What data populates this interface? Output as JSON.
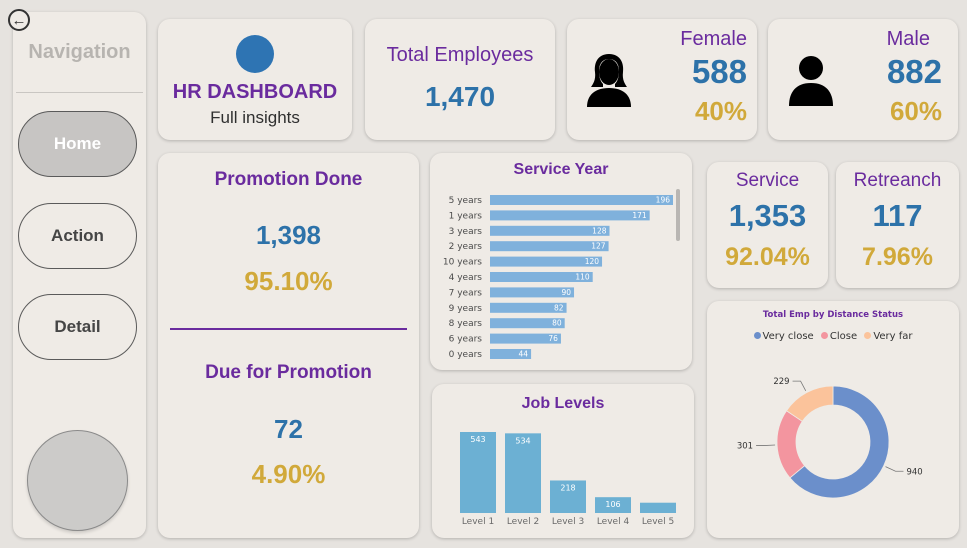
{
  "nav": {
    "title": "Navigation",
    "buttons": [
      {
        "label": "Home",
        "active": true
      },
      {
        "label": "Action",
        "active": false
      },
      {
        "label": "Detail",
        "active": false
      }
    ]
  },
  "header": {
    "title": "HR DASHBOARD",
    "subtitle": "Full insights"
  },
  "total": {
    "label": "Total Employees",
    "value": "1,470"
  },
  "female": {
    "label": "Female",
    "count": "588",
    "pct": "40%"
  },
  "male": {
    "label": "Male",
    "count": "882",
    "pct": "60%"
  },
  "promotion": {
    "done_label": "Promotion Done",
    "done_value": "1,398",
    "done_pct": "95.10%",
    "due_label": "Due for Promotion",
    "due_value": "72",
    "due_pct": "4.90%"
  },
  "service": {
    "label": "Service",
    "value": "1,353",
    "pct": "92.04%"
  },
  "retreanch": {
    "label": "Retreanch",
    "value": "117",
    "pct": "7.96%"
  },
  "colors": {
    "purple": "#6a2b9e",
    "blue": "#2d72a9",
    "gold": "#d1a93a",
    "bar": "#7fb1dc",
    "level_bar": "#6cb0d3",
    "very_close": "#6b8fcb",
    "close": "#f3959f",
    "very_far": "#fbc39b"
  },
  "chart_data": [
    {
      "type": "bar",
      "orientation": "horizontal",
      "title": "Service Year",
      "categories": [
        "5 years",
        "1 years",
        "3 years",
        "2 years",
        "10 years",
        "4 years",
        "7 years",
        "9 years",
        "8 years",
        "6 years",
        "0 years"
      ],
      "values": [
        196,
        171,
        128,
        127,
        120,
        110,
        90,
        82,
        80,
        76,
        44
      ]
    },
    {
      "type": "bar",
      "title": "Job Levels",
      "categories": [
        "Level 1",
        "Level 2",
        "Level 3",
        "Level 4",
        "Level 5"
      ],
      "values": [
        543,
        534,
        218,
        106,
        69
      ]
    },
    {
      "type": "pie",
      "title": "Total Emp by Distance Status",
      "legend_position": "top",
      "labels": [
        "Very close",
        "Close",
        "Very far"
      ],
      "values": [
        940,
        301,
        229
      ]
    }
  ]
}
